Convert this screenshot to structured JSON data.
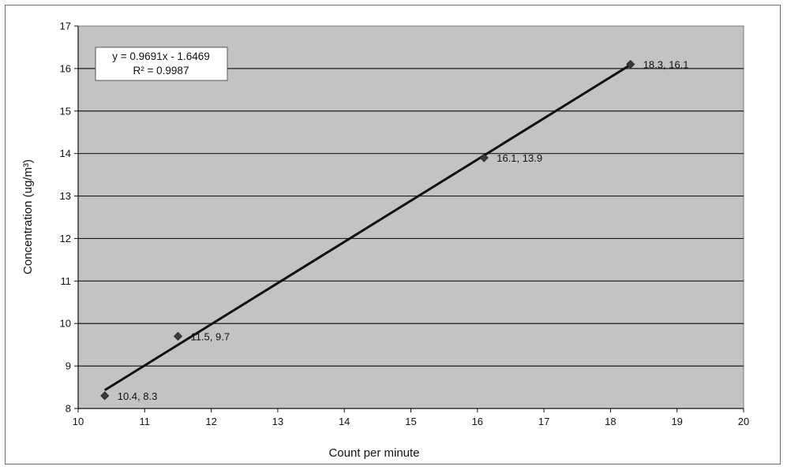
{
  "chart_data": {
    "type": "scatter",
    "xlabel": "Count per minute",
    "ylabel": "Concentration (ug/m³)",
    "xlim": [
      10,
      20
    ],
    "ylim": [
      8,
      17
    ],
    "x_ticks": [
      "10",
      "11",
      "12",
      "13",
      "14",
      "15",
      "16",
      "17",
      "18",
      "19",
      "20"
    ],
    "y_ticks": [
      "8",
      "9",
      "10",
      "11",
      "12",
      "13",
      "14",
      "15",
      "16",
      "17"
    ],
    "grid": "horizontal",
    "legend": "none",
    "series": [
      {
        "x": [
          10.4,
          11.5,
          16.1,
          18.3
        ],
        "y": [
          8.3,
          9.7,
          13.9,
          16.1
        ],
        "labels": [
          "10.4, 8.3",
          "11.5, 9.7",
          "16.1, 13.9",
          "18.3, 16.1"
        ]
      }
    ],
    "trendline": {
      "type": "linear",
      "slope": 0.9691,
      "intercept": -1.6469,
      "x_range": [
        10.4,
        18.3
      ],
      "equation": "y = 0.9691x - 1.6469",
      "r_squared": "R² = 0.9987"
    },
    "colors": {
      "plot_background": "#c3c3c3",
      "gridline": "#1a1a1a",
      "marker": "#3a3a3a",
      "trendline": "#111111"
    }
  }
}
